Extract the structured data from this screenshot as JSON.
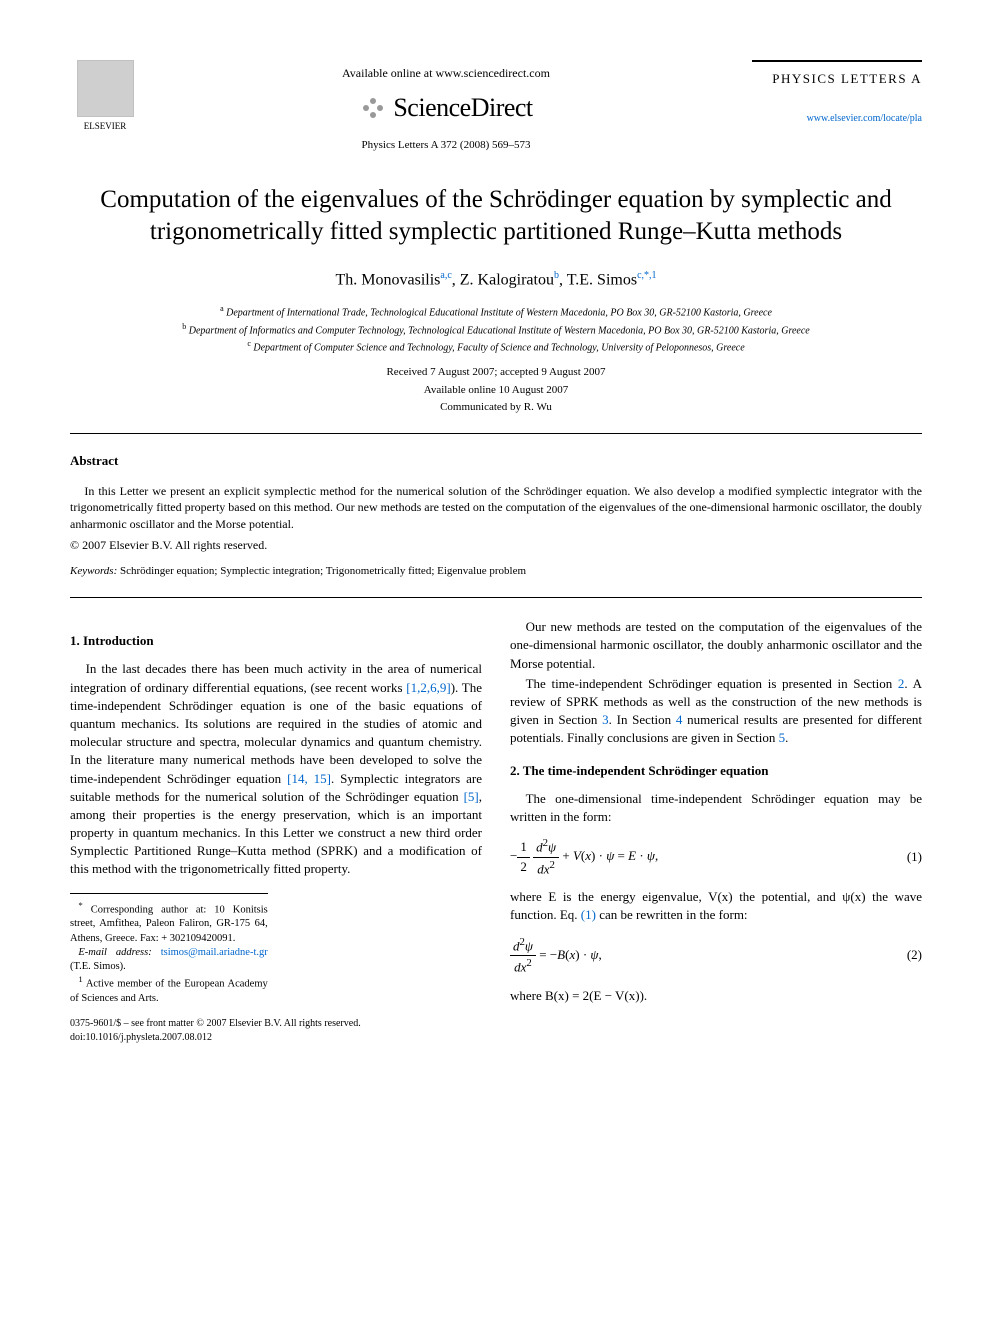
{
  "header": {
    "elsevier": "ELSEVIER",
    "available_online": "Available online at www.sciencedirect.com",
    "sciencedirect": "ScienceDirect",
    "journal_ref": "Physics Letters A 372 (2008) 569–573",
    "journal_name": "PHYSICS LETTERS A",
    "journal_link": "www.elsevier.com/locate/pla"
  },
  "title": "Computation of the eigenvalues of the Schrödinger equation by symplectic and trigonometrically fitted symplectic partitioned Runge–Kutta methods",
  "authors": {
    "a1_name": "Th. Monovasilis",
    "a1_sup": "a,c",
    "a2_name": "Z. Kalogiratou",
    "a2_sup": "b",
    "a3_name": "T.E. Simos",
    "a3_sup": "c,*,1"
  },
  "affiliations": {
    "a": "Department of International Trade, Technological Educational Institute of Western Macedonia, PO Box 30, GR-52100 Kastoria, Greece",
    "b": "Department of Informatics and Computer Technology, Technological Educational Institute of Western Macedonia, PO Box 30, GR-52100 Kastoria, Greece",
    "c": "Department of Computer Science and Technology, Faculty of Science and Technology, University of Peloponnesos, Greece"
  },
  "dates": {
    "received": "Received 7 August 2007; accepted 9 August 2007",
    "available": "Available online 10 August 2007",
    "communicated": "Communicated by R. Wu"
  },
  "abstract": {
    "heading": "Abstract",
    "text": "In this Letter we present an explicit symplectic method for the numerical solution of the Schrödinger equation. We also develop a modified symplectic integrator with the trigonometrically fitted property based on this method. Our new methods are tested on the computation of the eigenvalues of the one-dimensional harmonic oscillator, the doubly anharmonic oscillator and the Morse potential.",
    "copyright": "© 2007 Elsevier B.V. All rights reserved."
  },
  "keywords": {
    "label": "Keywords:",
    "text": " Schrödinger equation; Symplectic integration; Trigonometrically fitted; Eigenvalue problem"
  },
  "sections": {
    "intro_heading": "1. Introduction",
    "intro_p1a": "In the last decades there has been much activity in the area of numerical integration of ordinary differential equations, (see recent works ",
    "intro_ref1": "[1,2,6,9]",
    "intro_p1b": "). The time-independent Schrödinger equation is one of the basic equations of quantum mechanics. Its solutions are required in the studies of atomic and molecular structure and spectra, molecular dynamics and quantum chemistry. In the literature many numerical methods have been developed to solve the time-independent Schrödinger equation ",
    "intro_ref2": "[14, 15]",
    "intro_p1c": ". Symplectic integrators are suitable methods for the numerical solution of the Schrödinger equation ",
    "intro_ref3": "[5]",
    "intro_p1d": ", among their properties is the energy preservation, which is an important property in quantum mechanics. In this Letter we construct a new third order Symplectic Partitioned Runge–Kutta method (SPRK) and a modification of this method with the trigonometrically fitted property.",
    "col2_p1": "Our new methods are tested on the computation of the eigenvalues of the one-dimensional harmonic oscillator, the doubly anharmonic oscillator and the Morse potential.",
    "col2_p2a": "The time-independent Schrödinger equation is presented in Section ",
    "col2_sec2": "2",
    "col2_p2b": ". A review of SPRK methods as well as the construction of the new methods is given in Section ",
    "col2_sec3": "3",
    "col2_p2c": ". In Section ",
    "col2_sec4": "4",
    "col2_p2d": " numerical results are presented for different potentials. Finally conclusions are given in Section ",
    "col2_sec5": "5",
    "col2_p2e": ".",
    "s2_heading": "2. The time-independent Schrödinger equation",
    "s2_p1": "The one-dimensional time-independent Schrödinger equation may be written in the form:",
    "eq1_num": "(1)",
    "s2_p2a": "where E is the energy eigenvalue, V(x) the potential, and ψ(x) the wave function. Eq. ",
    "s2_eqref": "(1)",
    "s2_p2b": " can be rewritten in the form:",
    "eq2_num": "(2)",
    "s2_p3": "where B(x) = 2(E − V(x))."
  },
  "footnotes": {
    "corr": "Corresponding author at: 10 Konitsis street, Amfithea, Paleon Faliron, GR-175 64, Athens, Greece. Fax: + 302109420091.",
    "email_label": "E-mail address:",
    "email": " tsimos@mail.ariadne-t.gr",
    "email_who": " (T.E. Simos).",
    "member": "Active member of the European Academy of Sciences and Arts."
  },
  "footer": {
    "front_matter": "0375-9601/$ – see front matter © 2007 Elsevier B.V. All rights reserved.",
    "doi": "doi:10.1016/j.physleta.2007.08.012"
  }
}
